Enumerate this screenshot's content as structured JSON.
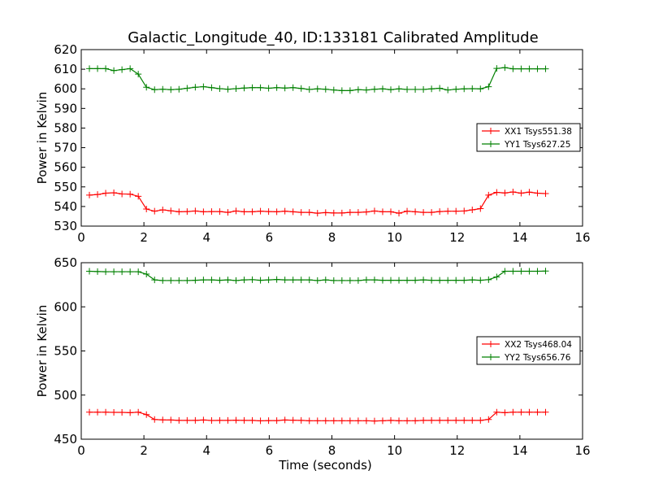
{
  "title": "Galactic_Longitude_40, ID:133181 Calibrated Amplitude",
  "chart_data": [
    {
      "type": "line",
      "xlabel": "",
      "ylabel": "Power in Kelvin",
      "xlim": [
        0,
        16
      ],
      "ylim": [
        530,
        620
      ],
      "xticks": [
        "0",
        "2",
        "4",
        "6",
        "8",
        "10",
        "12",
        "14",
        "16"
      ],
      "yticks": [
        "530",
        "540",
        "550",
        "560",
        "570",
        "580",
        "590",
        "600",
        "610",
        "620"
      ],
      "grid": false,
      "legend_position": "right",
      "x": [
        0.26,
        0.52,
        0.78,
        1.04,
        1.3,
        1.56,
        1.82,
        2.08,
        2.34,
        2.6,
        2.86,
        3.12,
        3.38,
        3.64,
        3.9,
        4.16,
        4.42,
        4.68,
        4.94,
        5.2,
        5.46,
        5.72,
        5.98,
        6.24,
        6.5,
        6.76,
        7.02,
        7.28,
        7.54,
        7.8,
        8.06,
        8.32,
        8.58,
        8.84,
        9.1,
        9.36,
        9.62,
        9.88,
        10.14,
        10.4,
        10.66,
        10.92,
        11.18,
        11.44,
        11.7,
        11.96,
        12.22,
        12.48,
        12.74,
        13.0,
        13.26,
        13.52,
        13.78,
        14.04,
        14.3,
        14.56,
        14.82
      ],
      "series": [
        {
          "name": "XX1 Tsys551.38",
          "color": "#ff0000",
          "values": [
            545.8,
            546.1,
            546.8,
            547.0,
            546.4,
            546.3,
            545.2,
            538.7,
            537.6,
            538.3,
            537.8,
            537.3,
            537.4,
            537.7,
            537.3,
            537.4,
            537.4,
            537.0,
            537.7,
            537.3,
            537.3,
            537.6,
            537.4,
            537.3,
            537.6,
            537.3,
            537.0,
            537.0,
            536.6,
            536.9,
            536.7,
            536.7,
            537.0,
            537.0,
            537.2,
            537.7,
            537.3,
            537.3,
            536.6,
            537.6,
            537.3,
            537.0,
            537.0,
            537.4,
            537.6,
            537.6,
            537.7,
            538.3,
            538.9,
            545.8,
            547.2,
            546.9,
            547.4,
            546.8,
            547.3,
            546.8,
            546.6
          ]
        },
        {
          "name": "YY1 Tsys627.25",
          "color": "#008000",
          "values": [
            610.3,
            610.3,
            610.3,
            609.3,
            609.8,
            610.3,
            607.5,
            600.8,
            599.6,
            599.8,
            599.6,
            599.8,
            600.3,
            600.8,
            601.1,
            600.6,
            600.1,
            599.8,
            600.1,
            600.4,
            600.6,
            600.6,
            600.3,
            600.6,
            600.4,
            600.6,
            600.2,
            599.7,
            600.0,
            599.8,
            599.4,
            599.1,
            599.1,
            599.6,
            599.4,
            599.8,
            600.0,
            599.6,
            600.0,
            599.7,
            599.7,
            599.7,
            600.0,
            600.3,
            599.4,
            599.8,
            600.0,
            600.1,
            600.0,
            601.1,
            610.4,
            610.8,
            610.2,
            610.2,
            610.2,
            610.2,
            610.2
          ]
        }
      ]
    },
    {
      "type": "line",
      "xlabel": "Time (seconds)",
      "ylabel": "Power in Kelvin",
      "xlim": [
        0,
        16
      ],
      "ylim": [
        450,
        650
      ],
      "xticks": [
        "0",
        "2",
        "4",
        "6",
        "8",
        "10",
        "12",
        "14",
        "16"
      ],
      "yticks": [
        "450",
        "500",
        "550",
        "600",
        "650"
      ],
      "grid": false,
      "legend_position": "right",
      "x": [
        0.26,
        0.52,
        0.78,
        1.04,
        1.3,
        1.56,
        1.82,
        2.08,
        2.34,
        2.6,
        2.86,
        3.12,
        3.38,
        3.64,
        3.9,
        4.16,
        4.42,
        4.68,
        4.94,
        5.2,
        5.46,
        5.72,
        5.98,
        6.24,
        6.5,
        6.76,
        7.02,
        7.28,
        7.54,
        7.8,
        8.06,
        8.32,
        8.58,
        8.84,
        9.1,
        9.36,
        9.62,
        9.88,
        10.14,
        10.4,
        10.66,
        10.92,
        11.18,
        11.44,
        11.7,
        11.96,
        12.22,
        12.48,
        12.74,
        13.0,
        13.26,
        13.52,
        13.78,
        14.04,
        14.3,
        14.56,
        14.82
      ],
      "series": [
        {
          "name": "XX2 Tsys468.04",
          "color": "#ff0000",
          "values": [
            480.6,
            480.6,
            480.6,
            480.4,
            480.4,
            480.1,
            480.6,
            477.9,
            472.3,
            471.9,
            471.8,
            471.3,
            471.3,
            471.3,
            471.8,
            471.2,
            471.3,
            471.3,
            471.5,
            471.3,
            471.3,
            470.8,
            471.1,
            471.1,
            471.8,
            471.5,
            471.3,
            470.9,
            470.9,
            470.9,
            470.9,
            470.9,
            470.9,
            470.9,
            470.9,
            470.6,
            470.9,
            471.3,
            470.9,
            470.9,
            470.9,
            471.3,
            471.3,
            471.3,
            471.3,
            471.3,
            471.3,
            471.3,
            471.3,
            472.4,
            480.6,
            480.1,
            480.6,
            480.6,
            480.6,
            480.6,
            480.6
          ]
        },
        {
          "name": "YY2 Tsys656.76",
          "color": "#008000",
          "values": [
            640.3,
            640.0,
            639.8,
            639.8,
            639.8,
            639.8,
            639.8,
            637.1,
            630.5,
            629.8,
            629.8,
            629.8,
            629.8,
            630.1,
            630.5,
            630.5,
            630.1,
            630.5,
            629.8,
            630.5,
            630.8,
            630.1,
            630.5,
            631.0,
            630.5,
            630.5,
            630.5,
            630.5,
            629.8,
            630.5,
            629.8,
            629.8,
            629.8,
            629.8,
            630.5,
            630.5,
            630.1,
            630.1,
            630.1,
            630.1,
            630.1,
            630.5,
            630.1,
            630.1,
            630.1,
            630.1,
            630.1,
            630.5,
            630.1,
            630.8,
            633.9,
            640.3,
            640.3,
            640.3,
            640.3,
            640.3,
            640.5
          ]
        }
      ]
    }
  ]
}
